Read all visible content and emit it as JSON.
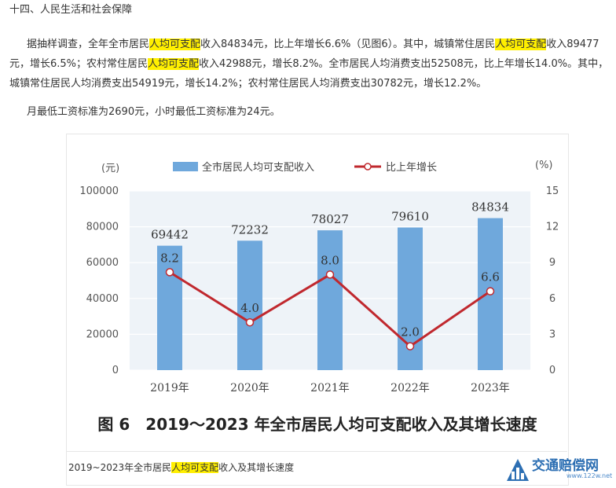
{
  "article": {
    "section_title": "十四、人民生活和社会保障",
    "highlight": "人均可支配",
    "p1_a": "据抽样调查，全年全市居民",
    "p1_b": "收入84834元，比上年增长6.6%（见图6）。其中，城镇常住居民",
    "p1_c": "收入89477元，增长6.5%；农村常住居民",
    "p1_d": "收入42988元，增长8.2%。全市居民人均消费支出52508元，比上年增长14.0%。其中，城镇常住居民人均消费支出54919元，增长14.2%；农村常住居民人均消费支出30782元，增长12.2%。",
    "p2": "月最低工资标准为2690元，小时最低工资标准为24元。"
  },
  "caption": {
    "before": "2019~2023年全市居民",
    "after": "收入及其增长速度"
  },
  "watermark": {
    "title": "交通赔偿网",
    "url": "www.122w.net"
  },
  "chart_data": {
    "type": "bar+line",
    "title": "图 6　2019～2023 年全市居民人均可支配收入及其增长速度",
    "categories": [
      "2019年",
      "2020年",
      "2021年",
      "2022年",
      "2023年"
    ],
    "y_left_unit": "(元)",
    "y_right_unit": "(%)",
    "y_left_ticks": [
      "100000",
      "80000",
      "60000",
      "40000",
      "20000",
      "0"
    ],
    "y_right_ticks": [
      "15",
      "12",
      "9",
      "6",
      "3",
      "0"
    ],
    "ylim_left": [
      0,
      100000
    ],
    "ylim_right": [
      0,
      15
    ],
    "legend_position": "top",
    "grid": true,
    "series": [
      {
        "name": "全市居民人均可支配收入",
        "type": "bar",
        "axis": "left",
        "values": [
          69442,
          72232,
          78027,
          79610,
          84834
        ],
        "labels": [
          "69442",
          "72232",
          "78027",
          "79610",
          "84834"
        ],
        "color": "#6fa8dc"
      },
      {
        "name": "比上年增长",
        "type": "line",
        "axis": "right",
        "values": [
          8.2,
          4.0,
          8.0,
          2.0,
          6.6
        ],
        "labels": [
          "8.2",
          "4.0",
          "8.0",
          "2.0",
          "6.6"
        ],
        "color": "#c0282e"
      }
    ]
  }
}
